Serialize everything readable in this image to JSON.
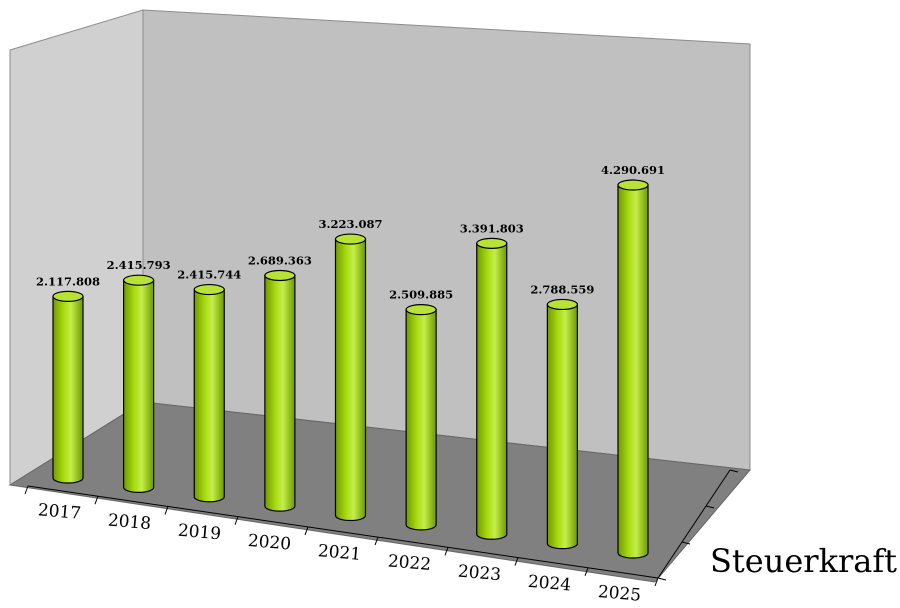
{
  "chart_data": {
    "type": "bar",
    "style": "3d-cylinder",
    "categories": [
      "2017",
      "2018",
      "2019",
      "2020",
      "2021",
      "2022",
      "2023",
      "2024",
      "2025"
    ],
    "series": [
      {
        "name": "Steuerkraft",
        "values": [
          2117808,
          2415793,
          2415744,
          2689363,
          3223087,
          2509885,
          3391803,
          2788559,
          4290691
        ]
      }
    ],
    "value_labels": [
      "2.117.808",
      "2.415.793",
      "2.415.744",
      "2.689.363",
      "3.223.087",
      "2.509.885",
      "3.391.803",
      "2.788.559",
      "4.290.691"
    ],
    "grid": false,
    "colors": {
      "bar": "#99CC00",
      "bar_dark": "#5E8A00",
      "bar_light": "#D4F27A",
      "back_wall": "#C0C0C0",
      "side_wall": "#D0D0D0",
      "floor": "#808080",
      "edge": "#000000"
    }
  }
}
